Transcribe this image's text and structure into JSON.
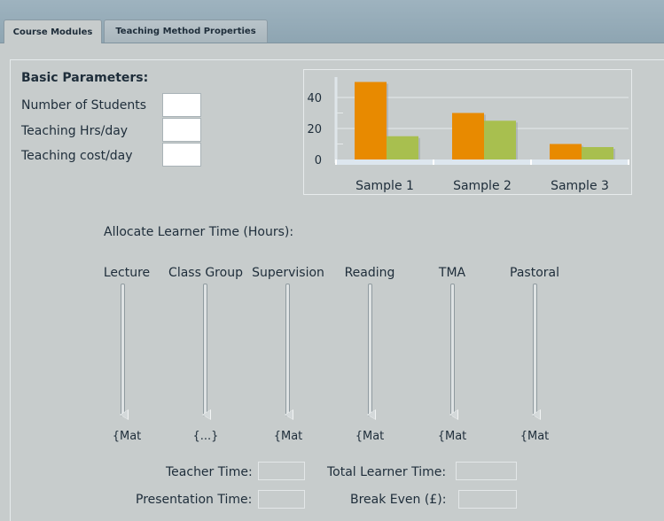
{
  "tabs": [
    {
      "label": "Course Modules",
      "active": true
    },
    {
      "label": "Teaching Method Properties",
      "active": false
    }
  ],
  "basic": {
    "heading": "Basic Parameters:",
    "fields": [
      {
        "label": "Number of Students",
        "value": ""
      },
      {
        "label": "Teaching Hrs/day",
        "value": ""
      },
      {
        "label": "Teaching cost/day",
        "value": ""
      }
    ]
  },
  "chart_data": {
    "type": "bar",
    "categories": [
      "Sample 1",
      "Sample 2",
      "Sample 3"
    ],
    "series": [
      {
        "color": "#e88a00",
        "values": [
          50,
          30,
          10
        ]
      },
      {
        "color": "#a8bf4f",
        "values": [
          15,
          25,
          8
        ]
      }
    ],
    "yticks": [
      0,
      20,
      40
    ],
    "ylim": [
      0,
      58
    ],
    "grid": true
  },
  "allocate": {
    "heading": "Allocate Learner Time (Hours):",
    "sliders": [
      {
        "label": "Lecture",
        "value": "{Mat"
      },
      {
        "label": "Class Group",
        "value": "{...}"
      },
      {
        "label": "Supervision",
        "value": "{Mat"
      },
      {
        "label": "Reading",
        "value": "{Mat"
      },
      {
        "label": "TMA",
        "value": "{Mat"
      },
      {
        "label": "Pastoral",
        "value": "{Mat"
      }
    ]
  },
  "results": {
    "teacher_time": "Teacher Time:",
    "total_learner_time": "Total Learner Time:",
    "presentation_time": "Presentation Time:",
    "break_even": "Break Even (£):"
  }
}
